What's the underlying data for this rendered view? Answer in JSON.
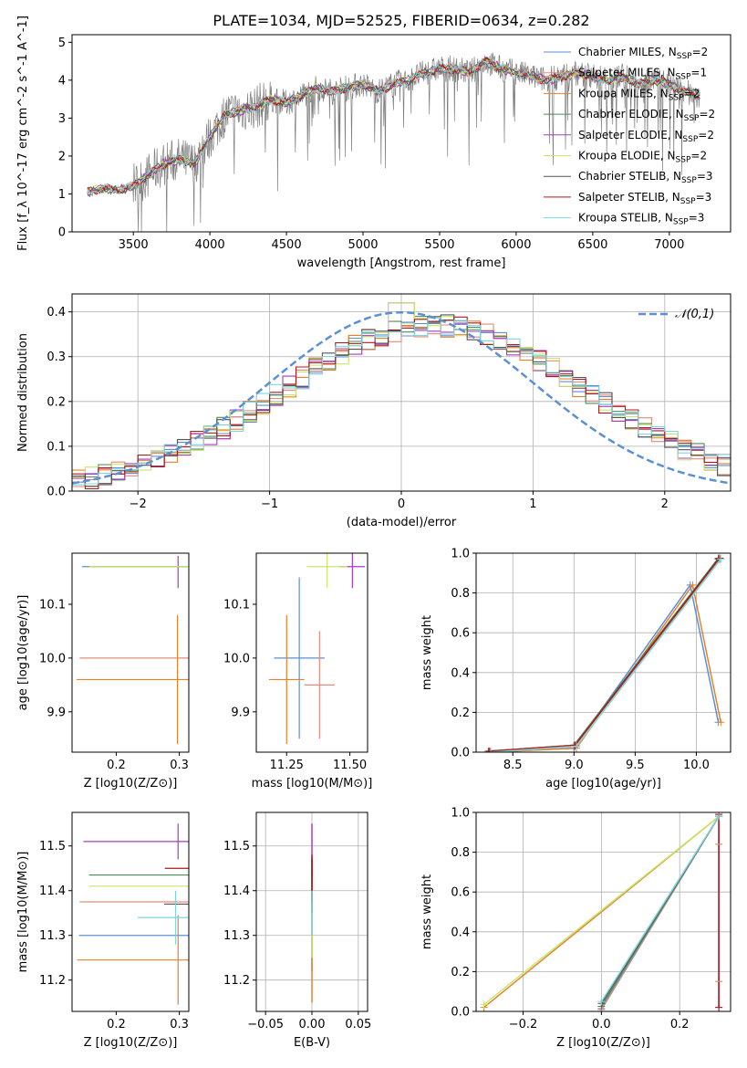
{
  "figure_title": "PLATE=1034, MJD=52525, FIBERID=0634, z=0.282",
  "series": [
    {
      "name": "Chabrier MILES",
      "nssp": "2",
      "color": "#5b8fd6"
    },
    {
      "name": "Salpeter MILES",
      "nssp": "1",
      "color": "#e8897a"
    },
    {
      "name": "Kroupa MILES",
      "nssp": "2",
      "color": "#e6822b"
    },
    {
      "name": "Chabrier ELODIE",
      "nssp": "2",
      "color": "#4f8a5a"
    },
    {
      "name": "Salpeter ELODIE",
      "nssp": "2",
      "color": "#a83ac4"
    },
    {
      "name": "Kroupa ELODIE",
      "nssp": "2",
      "color": "#c8e66e"
    },
    {
      "name": "Chabrier STELIB",
      "nssp": "3",
      "color": "#555555"
    },
    {
      "name": "Salpeter STELIB",
      "nssp": "3",
      "color": "#b01a1a"
    },
    {
      "name": "Kroupa STELIB",
      "nssp": "3",
      "color": "#7fd4e0"
    }
  ],
  "chart_data": [
    {
      "id": "spectrum",
      "type": "line",
      "xlabel": "wavelength [Angstrom, rest frame]",
      "ylabel": "Flux [f_λ 10^-17 erg cm^-2 s^-1 A^-1]",
      "xlim": [
        3100,
        7400
      ],
      "ylim": [
        0,
        5.2
      ],
      "xticks": [
        3500,
        4000,
        4500,
        5000,
        5500,
        6000,
        6500,
        7000
      ],
      "yticks": [
        0,
        1,
        2,
        3,
        4,
        5
      ],
      "data_color": "#808080",
      "continuum_x": [
        3200,
        3300,
        3400,
        3500,
        3600,
        3700,
        3800,
        3900,
        4000,
        4100,
        4200,
        4300,
        4400,
        4500,
        4600,
        4700,
        4800,
        4900,
        5000,
        5100,
        5200,
        5300,
        5400,
        5500,
        5600,
        5700,
        5800,
        5900,
        6000,
        6100,
        6200,
        6300,
        6400,
        6500,
        6600,
        6700,
        6800,
        6900,
        7000,
        7100,
        7200
      ],
      "continuum_y": [
        1.05,
        1.15,
        1.1,
        1.2,
        1.5,
        1.8,
        1.9,
        1.8,
        2.5,
        3.1,
        3.2,
        3.3,
        3.5,
        3.4,
        3.6,
        3.8,
        3.7,
        3.8,
        3.9,
        3.7,
        3.9,
        4.0,
        4.2,
        4.3,
        4.3,
        4.2,
        4.5,
        4.3,
        4.2,
        4.1,
        4.0,
        4.1,
        4.2,
        4.1,
        4.0,
        4.1,
        3.9,
        4.0,
        3.9,
        3.7,
        3.6
      ]
    },
    {
      "id": "residuals",
      "type": "line",
      "xlabel": "(data-model)/error",
      "ylabel": "Normed distribution",
      "xlim": [
        -2.5,
        2.5
      ],
      "ylim": [
        0,
        0.44
      ],
      "xticks": [
        -2,
        -1,
        0,
        1,
        2
      ],
      "yticks": [
        0.0,
        0.1,
        0.2,
        0.3,
        0.4
      ],
      "legend": "𝒩(0,1)",
      "legend_loc": "upper right",
      "grid": true
    },
    {
      "id": "age_vs_Z",
      "type": "scatter",
      "xlabel": "Z [log10(Z/Z⊙)]",
      "ylabel": "age  [log10(age/yr)]",
      "xlim": [
        0.13,
        0.315
      ],
      "ylim": [
        9.825,
        10.195
      ],
      "xticks": [
        0.2,
        0.3
      ],
      "yticks": [
        9.9,
        10.0,
        10.1
      ],
      "points": [
        {
          "x": 0.296,
          "y": 10.17,
          "xerr": 0.15,
          "yerr": 0.0
        },
        {
          "x": 0.297,
          "y": 10.0,
          "xerr": 0.155,
          "yerr": 0.0
        },
        {
          "x": 0.297,
          "y": 9.96,
          "xerr": 0.16,
          "yerr": 0.12
        },
        {
          "x": 0.297,
          "y": 10.17,
          "xerr": 0.14,
          "yerr": 0.0
        },
        {
          "x": 0.298,
          "y": 10.16,
          "xerr": 0.0,
          "yerr": 0.03
        },
        {
          "x": 0.297,
          "y": 10.17,
          "xerr": 0.14,
          "yerr": 0.0
        },
        {
          "x": 0.296,
          "y": 10.17,
          "xerr": 0.0,
          "yerr": 0.0
        },
        {
          "x": 0.297,
          "y": 10.17,
          "xerr": 0.0,
          "yerr": 0.0
        },
        {
          "x": 0.295,
          "y": 10.16,
          "xerr": 0.0,
          "yerr": 0.0
        }
      ]
    },
    {
      "id": "age_vs_mass",
      "type": "scatter",
      "xlabel": "mass [log10(M/M⊙)]",
      "ylabel": "",
      "xlim": [
        11.13,
        11.57
      ],
      "ylim": [
        9.825,
        10.195
      ],
      "xticks": [
        11.25,
        11.5
      ],
      "yticks": [
        9.9,
        10.0,
        10.1
      ],
      "points": [
        {
          "x": 11.3,
          "y": 10.0,
          "xerr": 0.1,
          "yerr": 0.15
        },
        {
          "x": 11.38,
          "y": 9.95,
          "xerr": 0.06,
          "yerr": 0.1
        },
        {
          "x": 11.25,
          "y": 9.96,
          "xerr": 0.07,
          "yerr": 0.12
        },
        {
          "x": 11.43,
          "y": 10.17,
          "xerr": 0.0,
          "yerr": 0.0
        },
        {
          "x": 11.51,
          "y": 10.17,
          "xerr": 0.05,
          "yerr": 0.04
        },
        {
          "x": 11.41,
          "y": 10.17,
          "xerr": 0.08,
          "yerr": 0.04
        },
        {
          "x": 11.37,
          "y": 10.17,
          "xerr": 0.0,
          "yerr": 0.0
        },
        {
          "x": 11.45,
          "y": 10.17,
          "xerr": 0.0,
          "yerr": 0.0
        },
        {
          "x": 11.34,
          "y": 10.17,
          "xerr": 0.0,
          "yerr": 0.0
        }
      ]
    },
    {
      "id": "weight_vs_age",
      "type": "line",
      "xlabel": "age  [log10(age/yr)]",
      "ylabel": "mass weight",
      "xlim": [
        8.2,
        10.28
      ],
      "ylim": [
        0,
        1
      ],
      "xticks": [
        8.5,
        9.0,
        9.5,
        10.0
      ],
      "yticks": [
        0.0,
        0.2,
        0.4,
        0.6,
        0.8,
        1.0
      ],
      "grid": true
    },
    {
      "id": "mass_vs_Z",
      "type": "scatter",
      "xlabel": "Z [log10(Z/Z⊙)]",
      "ylabel": "mass [log10(M/M⊙)]",
      "xlim": [
        0.13,
        0.315
      ],
      "ylim": [
        11.13,
        11.575
      ],
      "xticks": [
        0.2,
        0.3
      ],
      "yticks": [
        11.2,
        11.3,
        11.4,
        11.5
      ]
    },
    {
      "id": "mass_vs_EBV",
      "type": "scatter",
      "xlabel": "E(B-V)",
      "ylabel": "",
      "xlim": [
        -0.06,
        0.06
      ],
      "ylim": [
        11.13,
        11.575
      ],
      "xticks": [
        -0.05,
        0.0,
        0.05
      ],
      "yticks": [
        11.2,
        11.3,
        11.4,
        11.5
      ],
      "grid": true
    },
    {
      "id": "weight_vs_Z",
      "type": "line",
      "xlabel": "Z [log10(Z/Z⊙)]",
      "ylabel": "mass weight",
      "xlim": [
        -0.32,
        0.33
      ],
      "ylim": [
        0,
        1
      ],
      "xticks": [
        -0.2,
        0.0,
        0.2
      ],
      "yticks": [
        0.0,
        0.2,
        0.4,
        0.6,
        0.8,
        1.0
      ],
      "grid": true
    }
  ]
}
